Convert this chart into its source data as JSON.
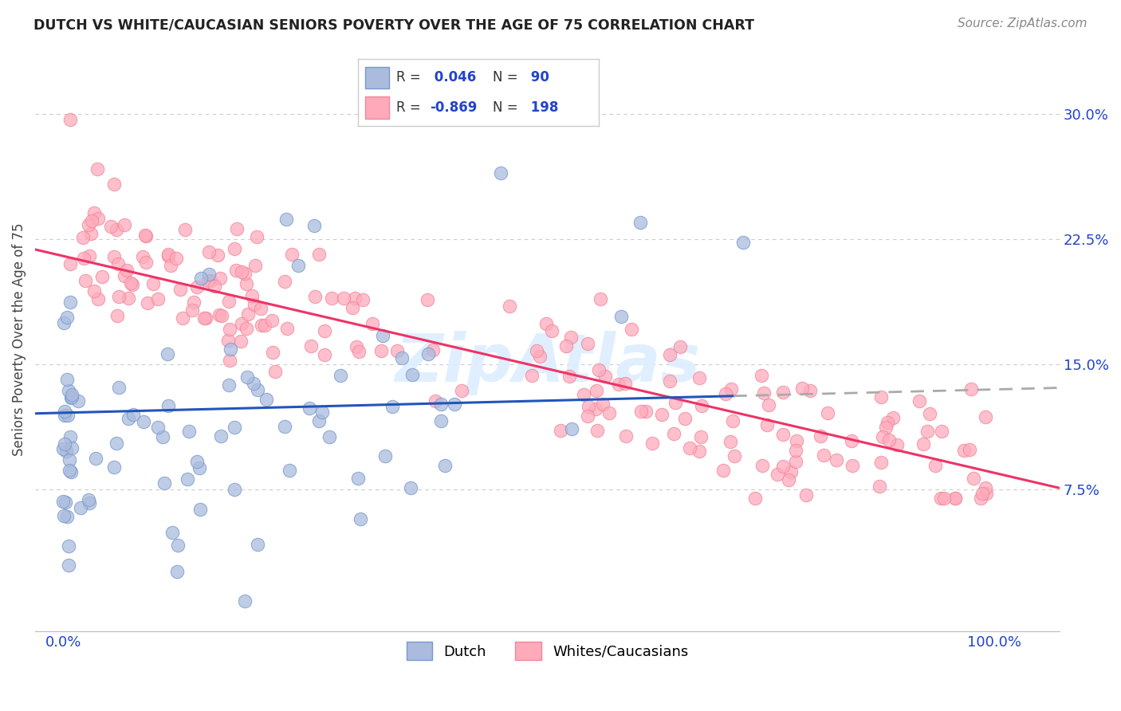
{
  "title": "DUTCH VS WHITE/CAUCASIAN SENIORS POVERTY OVER THE AGE OF 75 CORRELATION CHART",
  "source": "Source: ZipAtlas.com",
  "ylabel": "Seniors Poverty Over the Age of 75",
  "yticks": [
    0.075,
    0.15,
    0.225,
    0.3
  ],
  "ytick_labels": [
    "7.5%",
    "15.0%",
    "22.5%",
    "30.0%"
  ],
  "xticks": [
    0.0,
    0.2,
    0.4,
    0.6,
    0.8,
    1.0
  ],
  "xtick_labels": [
    "0.0%",
    "",
    "",
    "",
    "",
    "100.0%"
  ],
  "xlim": [
    -0.03,
    1.07
  ],
  "ylim": [
    -0.01,
    0.34
  ],
  "dutch_R": 0.046,
  "dutch_N": 90,
  "white_R": -0.869,
  "white_N": 198,
  "blue_dot_color": "#aabbdd",
  "blue_dot_edge": "#7799cc",
  "pink_dot_color": "#ffaabb",
  "pink_dot_edge": "#ee8899",
  "blue_line_color": "#2255bb",
  "pink_line_color": "#ee3366",
  "dash_line_color": "#aaaaaa",
  "legend_text_color": "#2244cc",
  "tick_color": "#2244cc",
  "background_color": "#ffffff",
  "grid_color": "#cccccc",
  "title_color": "#222222",
  "source_color": "#888888",
  "ylabel_color": "#444444",
  "watermark_color": "#ddeeff"
}
